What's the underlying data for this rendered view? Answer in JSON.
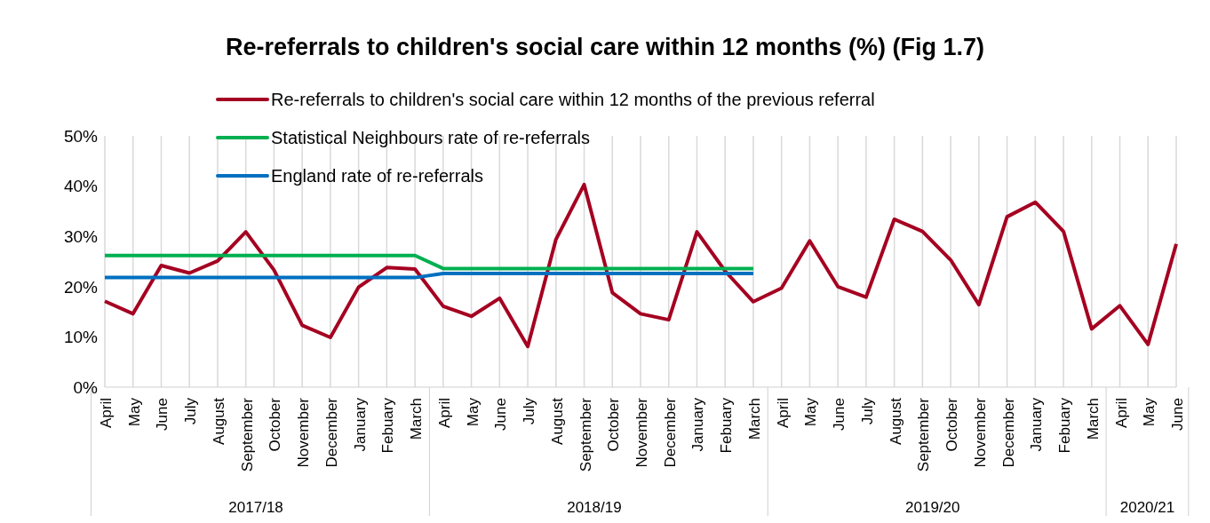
{
  "chart_data": {
    "type": "line",
    "title": "Re-referrals to children's social care within 12 months (%) (Fig 1.7)",
    "categories": [
      "April",
      "May",
      "June",
      "July",
      "August",
      "September",
      "October",
      "November",
      "December",
      "January",
      "Febuary",
      "March",
      "April",
      "May",
      "June",
      "July",
      "August",
      "September",
      "October",
      "November",
      "December",
      "January",
      "Febuary",
      "March",
      "April",
      "May",
      "June",
      "July",
      "August",
      "September",
      "October",
      "November",
      "December",
      "January",
      "Febuary",
      "March",
      "April",
      "May",
      "June"
    ],
    "series": [
      {
        "name": "Re-referrals to children's social care within 12 months of the previous referral",
        "color": "#a50021",
        "values": [
          17.1,
          14.6,
          24.2,
          22.7,
          25.1,
          30.9,
          23.3,
          12.3,
          9.9,
          19.9,
          23.8,
          23.5,
          16.1,
          14.1,
          17.7,
          8.1,
          29.4,
          40.3,
          18.8,
          14.6,
          13.4,
          30.9,
          23.1,
          17.0,
          19.7,
          29.1,
          20.0,
          17.9,
          33.4,
          31.0,
          25.3,
          16.4,
          33.9,
          36.8,
          31.0,
          11.6,
          16.2,
          8.5,
          28.5
        ]
      },
      {
        "name": "Statistical Neighbours rate of re-referrals",
        "color": "#00b050",
        "values": [
          26.2,
          26.2,
          26.2,
          26.2,
          26.2,
          26.2,
          26.2,
          26.2,
          26.2,
          26.2,
          26.2,
          26.2,
          23.6,
          23.6,
          23.6,
          23.6,
          23.6,
          23.6,
          23.6,
          23.6,
          23.6,
          23.6,
          23.6,
          23.6,
          null,
          null,
          null,
          null,
          null,
          null,
          null,
          null,
          null,
          null,
          null,
          null,
          null,
          null,
          null
        ]
      },
      {
        "name": "England rate of re-referrals",
        "color": "#0070c0",
        "values": [
          21.8,
          21.8,
          21.8,
          21.8,
          21.8,
          21.8,
          21.8,
          21.8,
          21.8,
          21.8,
          21.8,
          21.8,
          22.6,
          22.6,
          22.6,
          22.6,
          22.6,
          22.6,
          22.6,
          22.6,
          22.6,
          22.6,
          22.6,
          22.6,
          null,
          null,
          null,
          null,
          null,
          null,
          null,
          null,
          null,
          null,
          null,
          null,
          null,
          null,
          null
        ]
      }
    ],
    "annotations": [
      "2017/18",
      "2018/19",
      "2019/20",
      "2020/21"
    ],
    "ylim": [
      0,
      50
    ],
    "yticks": [
      {
        "value": 0,
        "label": "0%"
      },
      {
        "value": 10,
        "label": "10%"
      },
      {
        "value": 20,
        "label": "20%"
      },
      {
        "value": 30,
        "label": "30%"
      },
      {
        "value": 40,
        "label": "40%"
      },
      {
        "value": 50,
        "label": "50%"
      }
    ],
    "grid": "x",
    "legend": "top",
    "marker": "none",
    "line_style": "solid"
  }
}
